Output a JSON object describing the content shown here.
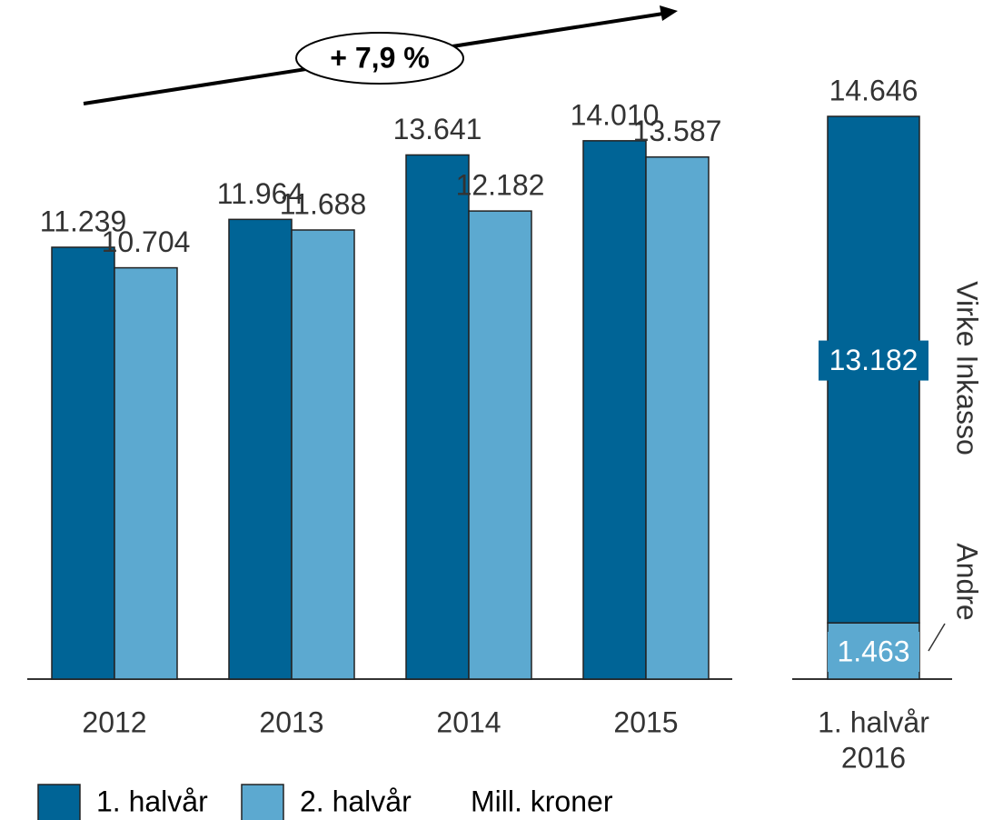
{
  "chart_data": [
    {
      "type": "bar",
      "categories": [
        "2012",
        "2013",
        "2014",
        "2015"
      ],
      "series": [
        {
          "name": "1. halvår",
          "color": "#006496",
          "values": [
            11239,
            11964,
            13641,
            14010
          ],
          "value_labels": [
            "11.239",
            "11.964",
            "13.641",
            "14.010"
          ]
        },
        {
          "name": "2. halvår",
          "color": "#5ca9d0",
          "values": [
            10704,
            11688,
            12182,
            13587
          ],
          "value_labels": [
            "10.704",
            "11.688",
            "12.182",
            "13.587"
          ]
        }
      ],
      "ylim": [
        0,
        15000
      ],
      "annotation": "+ 7,9 %",
      "unit_label": "Mill. kroner"
    },
    {
      "type": "stacked_bar",
      "category_lines": [
        "1. halvår",
        "2016"
      ],
      "segments": [
        {
          "name": "Andre",
          "color": "#5ca9d0",
          "value": 1463,
          "value_label": "1.463"
        },
        {
          "name": "Virke Inkasso",
          "color": "#006496",
          "value": 13182,
          "value_label": "13.182"
        }
      ],
      "total": 14646,
      "total_label": "14.646",
      "ylim": [
        0,
        15000
      ]
    }
  ]
}
